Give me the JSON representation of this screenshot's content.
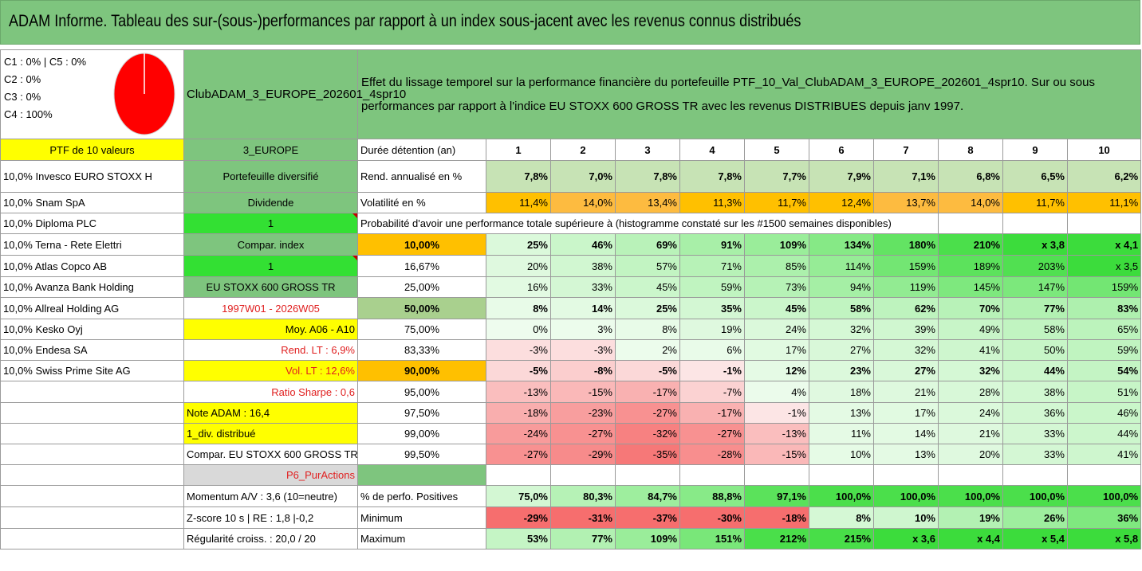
{
  "title": "ADAM Informe. Tableau des sur-(sous-)performances par rapport à un index sous-jacent avec les revenus connus distribués",
  "pie": {
    "lines": [
      "C1 : 0% | C5 : 0%",
      "C2 : 0%",
      "C3 : 0%",
      "C4 : 100%"
    ],
    "color": "#ff0000"
  },
  "fund_name": "ClubADAM_3_EUROPE_202601_4spr10",
  "description": "Effet du lissage temporel sur la performance financière du portefeuille PTF_10_Val_ClubADAM_3_EUROPE_202601_4spr10. Sur ou sous performances par rapport à l'indice EU STOXX 600 GROSS TR avec les revenus DISTRIBUES depuis janv 1997.",
  "ptf_label": "PTF de 10 valeurs",
  "region": "3_EUROPE",
  "holdings": [
    "10,0% Invesco EURO STOXX H",
    "10,0% Snam SpA",
    "10,0% Diploma PLC",
    "10,0% Terna - Rete Elettri",
    "10,0% Atlas Copco AB",
    "10,0% Avanza Bank Holding",
    "10,0% Allreal Holding AG",
    "10,0% Kesko Oyj",
    "10,0% Endesa SA",
    "10,0% Swiss Prime Site AG"
  ],
  "info": {
    "diversified": "Portefeuille diversifié",
    "dividend": "Dividende",
    "dividend_value": "1",
    "compar_index": "Compar. index",
    "compar_value": "1",
    "index_name": "EU STOXX 600 GROSS TR",
    "period": "1997W01 - 2026W05",
    "moy": "Moy. A06 - A10",
    "rend_lt": "Rend. LT : 6,9%",
    "vol_lt": "Vol. LT : 12,6%",
    "sharpe": "Ratio Sharpe : 0,6",
    "note": "Note ADAM : 16,4",
    "div_distrib": "1_div. distribué",
    "compar_full": "Compar. EU STOXX 600 GROSS TR",
    "p6": "P6_PurActions",
    "momentum": "Momentum A/V : 3,6 (10=neutre)",
    "zscore": "Z-score 10 s | RE : 1,8 |-0,2",
    "regularite": "Régularité croiss. : 20,0 / 20"
  },
  "duration_label": "Durée détention (an)",
  "years": [
    "1",
    "2",
    "3",
    "4",
    "5",
    "6",
    "7",
    "8",
    "9",
    "10"
  ],
  "rend_label": "Rend. annualisé en %",
  "rend": [
    "7,8%",
    "7,0%",
    "7,8%",
    "7,8%",
    "7,7%",
    "7,9%",
    "7,1%",
    "6,8%",
    "6,5%",
    "6,2%"
  ],
  "vol_label": "Volatilité en %",
  "vol": [
    "11,4%",
    "14,0%",
    "13,4%",
    "11,3%",
    "11,7%",
    "12,4%",
    "13,7%",
    "14,0%",
    "11,7%",
    "11,1%"
  ],
  "prob_header": "Probabilité d'avoir une performance totale supérieure à (histogramme constaté sur les #1500 semaines disponibles)",
  "quantiles": [
    {
      "p": "10,00%",
      "v": [
        "25%",
        "46%",
        "69%",
        "91%",
        "109%",
        "134%",
        "180%",
        "210%",
        "x 3,8",
        "x 4,1"
      ]
    },
    {
      "p": "16,67%",
      "v": [
        "20%",
        "38%",
        "57%",
        "71%",
        "85%",
        "114%",
        "159%",
        "189%",
        "203%",
        "x 3,5"
      ]
    },
    {
      "p": "25,00%",
      "v": [
        "16%",
        "33%",
        "45%",
        "59%",
        "73%",
        "94%",
        "119%",
        "145%",
        "147%",
        "159%"
      ]
    },
    {
      "p": "50,00%",
      "v": [
        "8%",
        "14%",
        "25%",
        "35%",
        "45%",
        "58%",
        "62%",
        "70%",
        "77%",
        "83%"
      ]
    },
    {
      "p": "75,00%",
      "v": [
        "0%",
        "3%",
        "8%",
        "19%",
        "24%",
        "32%",
        "39%",
        "49%",
        "58%",
        "65%"
      ]
    },
    {
      "p": "83,33%",
      "v": [
        "-3%",
        "-3%",
        "2%",
        "6%",
        "17%",
        "27%",
        "32%",
        "41%",
        "50%",
        "59%"
      ]
    },
    {
      "p": "90,00%",
      "v": [
        "-5%",
        "-8%",
        "-5%",
        "-1%",
        "12%",
        "23%",
        "27%",
        "32%",
        "44%",
        "54%"
      ]
    },
    {
      "p": "95,00%",
      "v": [
        "-13%",
        "-15%",
        "-17%",
        "-7%",
        "4%",
        "18%",
        "21%",
        "28%",
        "38%",
        "51%"
      ]
    },
    {
      "p": "97,50%",
      "v": [
        "-18%",
        "-23%",
        "-27%",
        "-17%",
        "-1%",
        "13%",
        "17%",
        "24%",
        "36%",
        "46%"
      ]
    },
    {
      "p": "99,00%",
      "v": [
        "-24%",
        "-27%",
        "-32%",
        "-27%",
        "-13%",
        "11%",
        "14%",
        "21%",
        "33%",
        "44%"
      ]
    },
    {
      "p": "99,50%",
      "v": [
        "-27%",
        "-29%",
        "-35%",
        "-28%",
        "-15%",
        "10%",
        "13%",
        "20%",
        "33%",
        "41%"
      ]
    }
  ],
  "pos_label": "% de perfo. Positives",
  "pos": [
    "75,0%",
    "80,3%",
    "84,7%",
    "88,8%",
    "97,1%",
    "100,0%",
    "100,0%",
    "100,0%",
    "100,0%",
    "100,0%"
  ],
  "min_label": "Minimum",
  "min": [
    "-29%",
    "-31%",
    "-37%",
    "-30%",
    "-18%",
    "8%",
    "10%",
    "19%",
    "26%",
    "36%"
  ],
  "max_label": "Maximum",
  "max": [
    "53%",
    "77%",
    "109%",
    "151%",
    "212%",
    "215%",
    "x 3,6",
    "x 4,4",
    "x 5,4",
    "x 5,8"
  ]
}
